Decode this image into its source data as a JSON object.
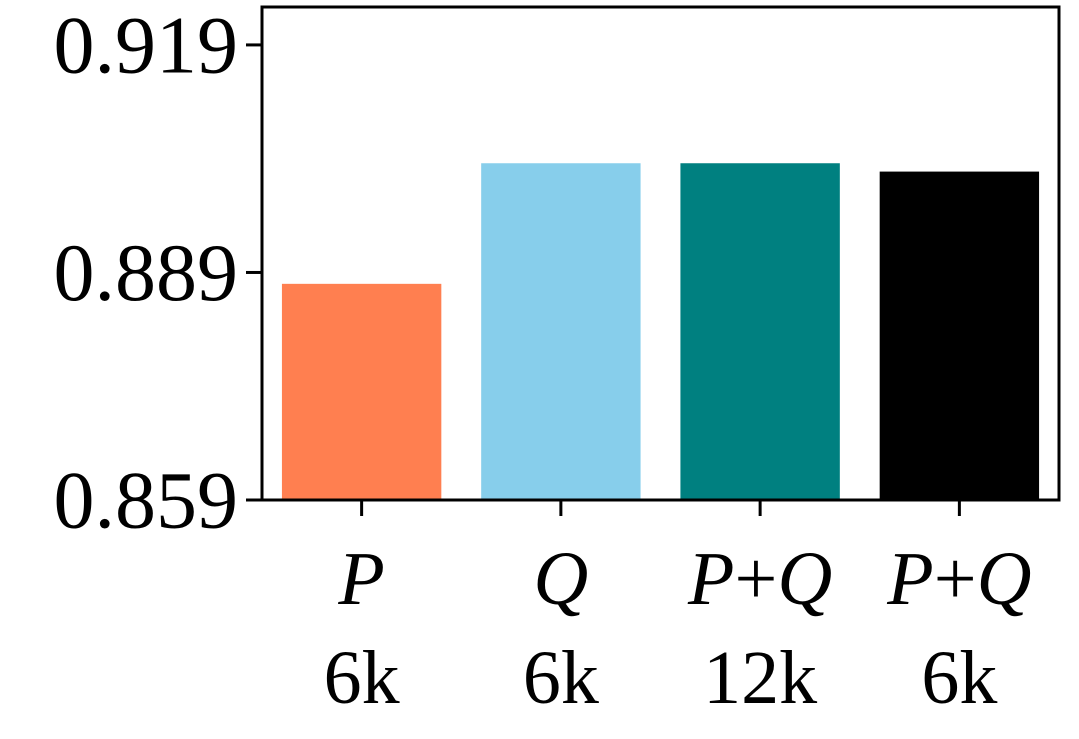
{
  "chart_data": {
    "type": "bar",
    "categories": [
      {
        "parts": [
          "P"
        ],
        "size": "6k"
      },
      {
        "parts": [
          "Q"
        ],
        "size": "6k"
      },
      {
        "parts": [
          "P",
          "+",
          "Q"
        ],
        "size": "12k"
      },
      {
        "parts": [
          "P",
          "+",
          "Q"
        ],
        "size": "6k"
      }
    ],
    "values": [
      0.8875,
      0.9034,
      0.9034,
      0.9023
    ],
    "colors": [
      "#FF7F50",
      "#87CEEB",
      "#008080",
      "#000000"
    ],
    "yticks": [
      "0.859",
      "0.889",
      "0.919"
    ],
    "ylim": [
      0.859,
      0.924
    ],
    "title": "",
    "xlabel": "",
    "ylabel": "",
    "grid": false,
    "legend": false
  }
}
